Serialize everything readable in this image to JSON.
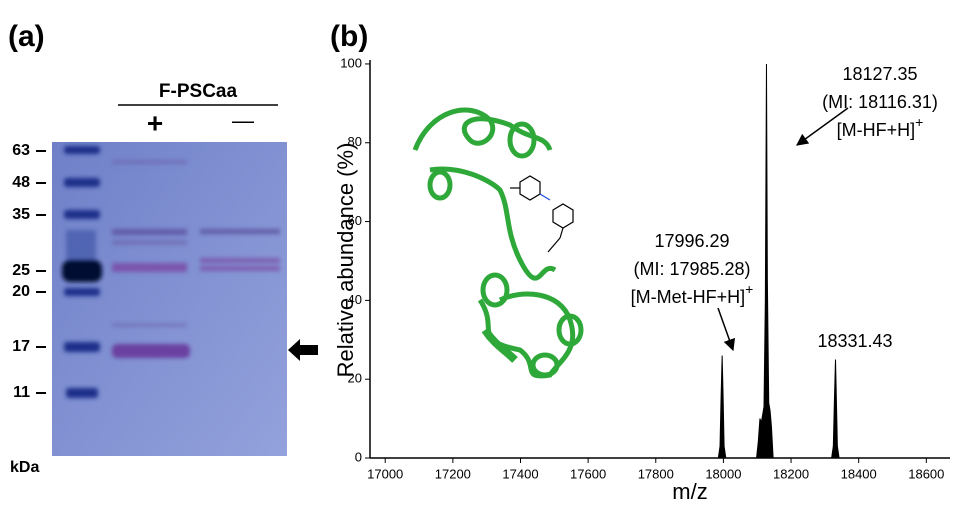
{
  "gel": {
    "panel_label": "(a)",
    "header": "F-PSCaa",
    "lanes": [
      "+",
      "—"
    ],
    "markers": [
      "63",
      "48",
      "35",
      "25",
      "20",
      "17",
      "11"
    ],
    "unit": "kDa"
  },
  "chart_data": {
    "type": "line",
    "panel_label": "(b)",
    "xlabel": "m/z",
    "ylabel": "Relative abundance (%)",
    "x": [
      17000,
      17985,
      17990,
      17993,
      17996.29,
      17999,
      18002,
      18007,
      18098,
      18103,
      18108,
      18112,
      18116,
      18120,
      18124,
      18127.35,
      18130,
      18134,
      18138,
      18142,
      18147,
      18320,
      18325,
      18328,
      18331.43,
      18334,
      18337,
      18342,
      18600
    ],
    "series": [
      {
        "color": "#000000",
        "values": [
          0,
          0,
          3,
          15,
          26,
          16,
          3,
          0,
          0,
          4,
          10,
          9,
          11,
          13,
          40,
          100,
          45,
          14,
          12,
          8,
          0,
          0,
          3,
          14,
          25,
          15,
          3,
          0,
          0
        ]
      }
    ],
    "xlim": [
      16955,
      18670
    ],
    "ylim": [
      0,
      101
    ],
    "xticks": [
      17000,
      17200,
      17400,
      17600,
      17800,
      18000,
      18200,
      18400,
      18600
    ],
    "yticks": [
      0,
      20,
      40,
      60,
      80,
      100
    ],
    "annotations": [
      {
        "lines": [
          "18127.35",
          "(MI: 18116.31)"
        ],
        "ion": "[M-HF+H]",
        "charge": "+"
      },
      {
        "lines": [
          "17996.29",
          "(MI: 17985.28)"
        ],
        "ion": "[M-Met-HF+H]",
        "charge": "+"
      },
      {
        "lines": [
          "18331.43"
        ]
      }
    ]
  }
}
